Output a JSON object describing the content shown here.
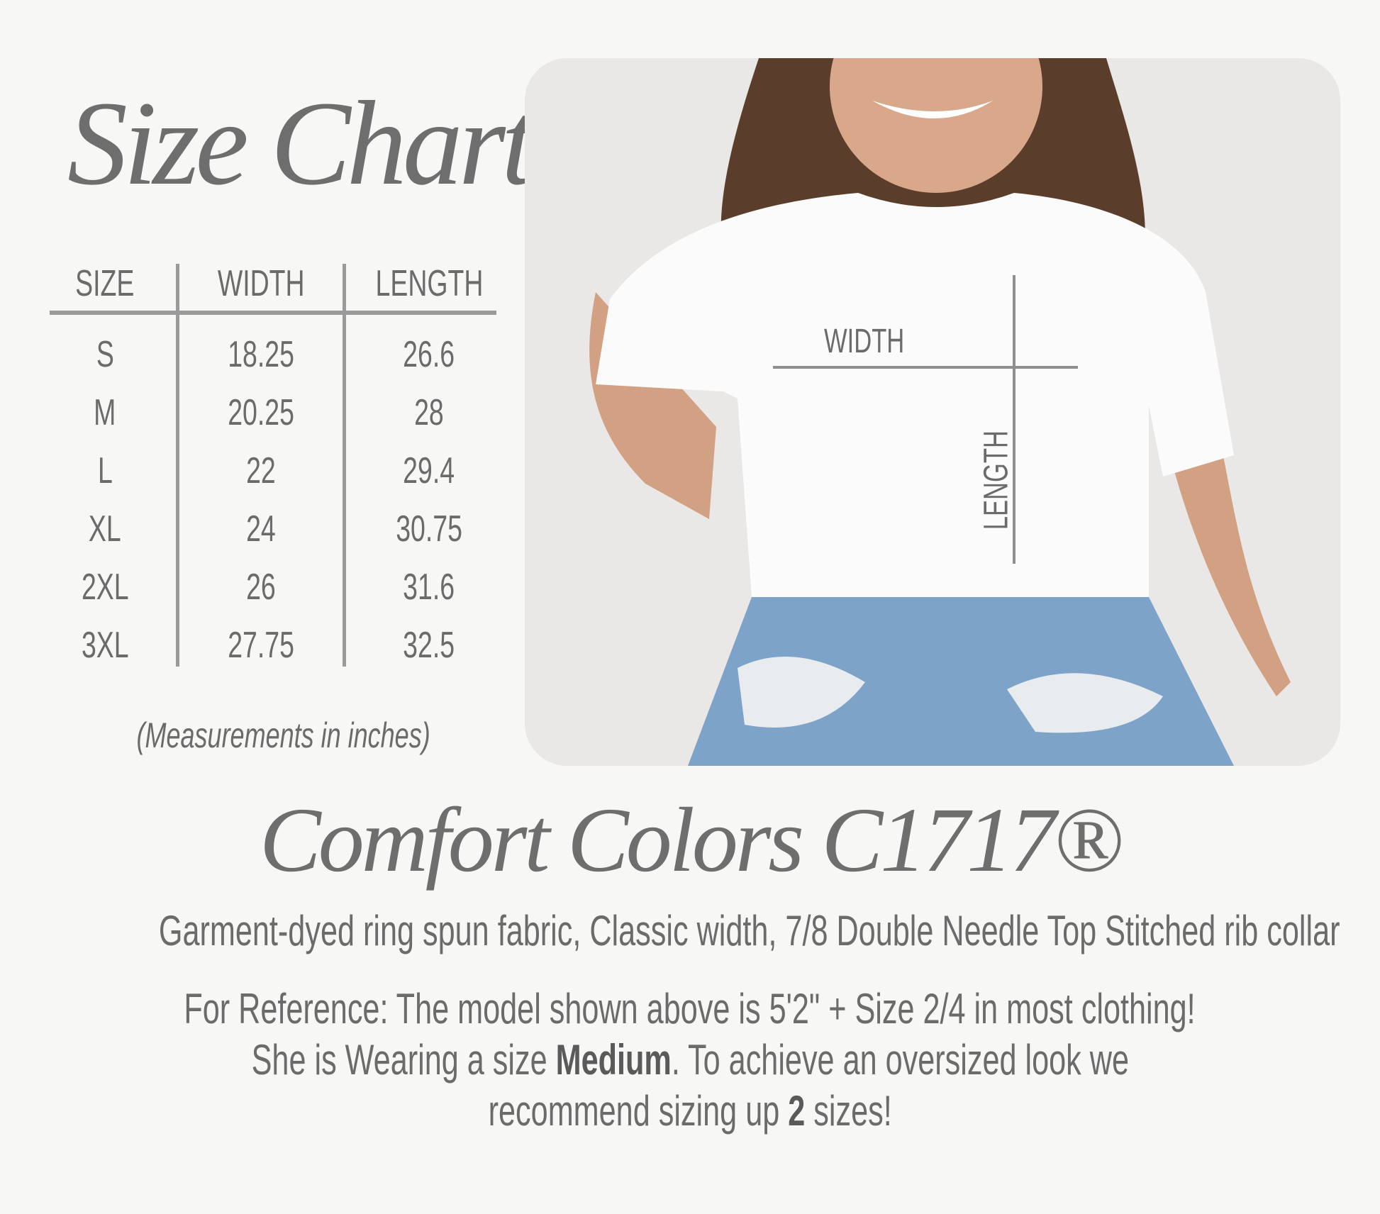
{
  "title": "Size Chart",
  "table": {
    "headers": [
      "SIZE",
      "WIDTH",
      "LENGTH"
    ],
    "rows": [
      [
        "S",
        "18.25",
        "26.6"
      ],
      [
        "M",
        "20.25",
        "28"
      ],
      [
        "L",
        "22",
        "29.4"
      ],
      [
        "XL",
        "24",
        "30.75"
      ],
      [
        "2XL",
        "26",
        "31.6"
      ],
      [
        "3XL",
        "27.75",
        "32.5"
      ]
    ]
  },
  "note": "(Measurements in inches)",
  "photo": {
    "width_label": "WIDTH",
    "length_label": "LENGTH"
  },
  "brand": "Comfort Colors C1717®",
  "description": "Garment-dyed ring spun fabric, Classic width, 7/8 Double Needle Top Stitched rib collar",
  "reference": {
    "line1": "For Reference: The model shown above is 5'2\" + Size 2/4 in most clothing!",
    "line2_a": "She is Wearing a size ",
    "line2_bold": "Medium",
    "line2_b": ". To achieve an oversized look we",
    "line3_a": "recommend sizing up ",
    "line3_bold": "2",
    "line3_b": " sizes!"
  },
  "colors": {
    "text": "#6b6b6b",
    "lines": "#9a9a9a",
    "background": "#f7f7f6"
  }
}
